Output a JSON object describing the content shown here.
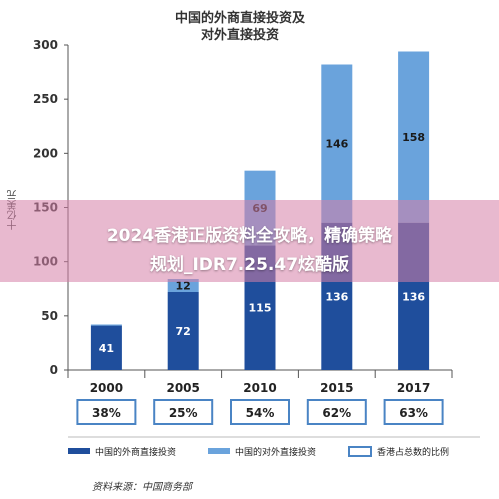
{
  "chart_data": {
    "type": "bar",
    "title_line1": "中国的外商直接投资及",
    "title_line2": "对外直接投资",
    "ylabel": "十亿美元",
    "ylim": [
      0,
      300
    ],
    "yticks": [
      0,
      50,
      100,
      150,
      200,
      250,
      300
    ],
    "categories": [
      "2000",
      "2005",
      "2010",
      "2015",
      "2017"
    ],
    "series": [
      {
        "name": "中国的外商直接投资",
        "values": [
          41,
          72,
          115,
          136,
          136
        ],
        "color": "#1f4e9c"
      },
      {
        "name": "中国的对外直接投资",
        "values": [
          1,
          12,
          69,
          146,
          158
        ],
        "color": "#6aa3dc"
      }
    ],
    "hk_share": {
      "name": "香港占总数的比例",
      "values": [
        "38%",
        "25%",
        "54%",
        "62%",
        "63%"
      ],
      "border_color": "#4a84c4"
    },
    "grid": false
  },
  "overlay": {
    "line1": "2024香港正版资料全攻略，精确策略",
    "line2": "规划_IDR7.25.47炫酷版"
  },
  "source": "资料来源：中国商务部"
}
